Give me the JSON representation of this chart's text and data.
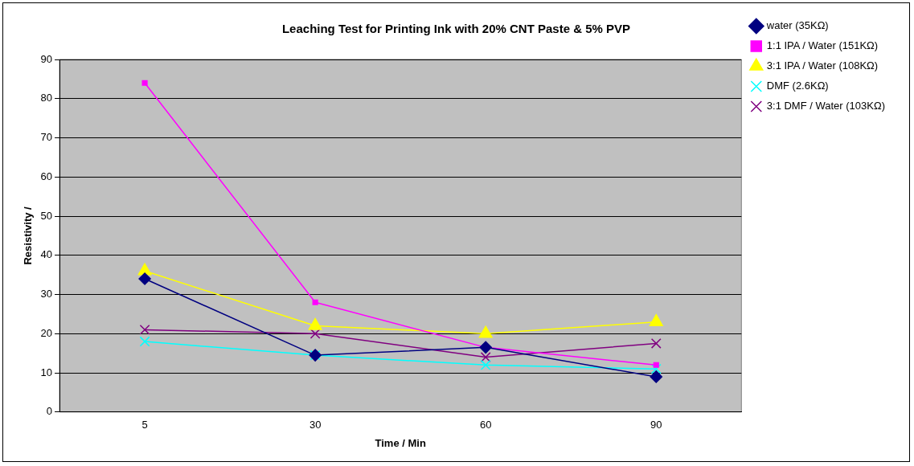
{
  "chart_data": {
    "type": "line",
    "title": "Leaching Test for Printing Ink with 20% CNT Paste & 5% PVP",
    "xlabel": "Time / Min",
    "ylabel": "Resistivity /",
    "categories": [
      "5",
      "30",
      "60",
      "90"
    ],
    "ylim": [
      0,
      90
    ],
    "yticks": [
      0,
      10,
      20,
      30,
      40,
      50,
      60,
      70,
      80,
      90
    ],
    "grid": "y",
    "legend": "right",
    "line_style": "solid",
    "series": [
      {
        "name": "water (35KΩ)",
        "color": "#000080",
        "marker": "diamond",
        "values": [
          34,
          14.5,
          16.5,
          9
        ]
      },
      {
        "name": "1:1 IPA / Water (151KΩ)",
        "color": "#ff00ff",
        "marker": "square",
        "values": [
          84,
          28,
          16.5,
          12
        ]
      },
      {
        "name": "3:1 IPA / Water (108KΩ)",
        "color": "#ffff00",
        "marker": "triangle",
        "values": [
          36,
          22,
          20,
          23
        ]
      },
      {
        "name": "DMF (2.6KΩ)",
        "color": "#00ffff",
        "marker": "cross",
        "values": [
          18,
          14.5,
          12,
          11
        ]
      },
      {
        "name": "3:1 DMF / Water (103KΩ)",
        "color": "#800080",
        "marker": "cross",
        "values": [
          21,
          20,
          14,
          17.5
        ]
      }
    ]
  }
}
